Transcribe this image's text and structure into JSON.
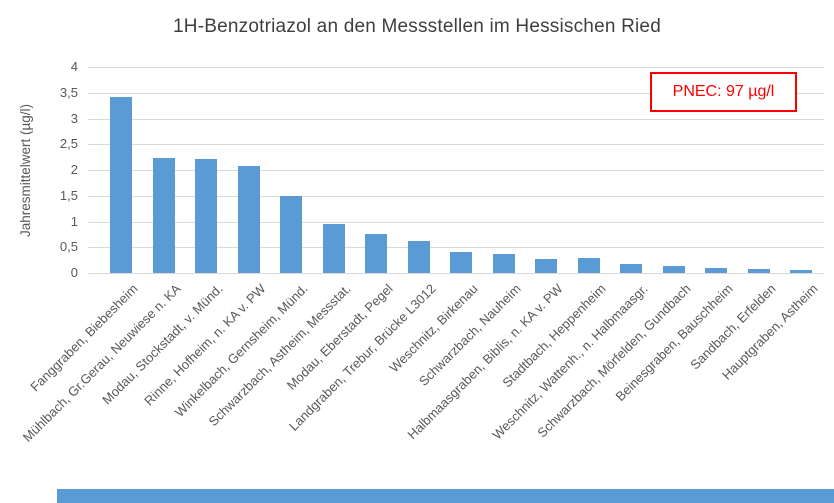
{
  "chart_data": {
    "type": "bar",
    "title": "1H-Benzotriazol an den Messstellen im Hessischen Ried",
    "ylabel": "Jahresmittelwert (µg/l)",
    "xlabel": "",
    "ylim": [
      0,
      4
    ],
    "ytick_step": 0.5,
    "ytick_labels": [
      "0",
      "0,5",
      "1",
      "1,5",
      "2",
      "2,5",
      "3",
      "3,5",
      "4"
    ],
    "grid": true,
    "legend": false,
    "categories": [
      "Fanggraben, Biebesheim",
      "Mühlbach, Gr.Gerau, Neuwiese n. KA",
      "Modau, Stockstadt, v. Münd.",
      "Rinne, Hofheim, n. KA v. PW",
      "Winkelbach, Gernsheim, Münd.",
      "Schwarzbach, Astheim, Messstat.",
      "Modau, Eberstadt, Pegel",
      "Landgraben, Trebur, Brücke L3012",
      "Weschnitz, Birkenau",
      "Schwarzbach, Nauheim",
      "Halbmaasgraben, Biblis, n. KA v. PW",
      "Stadtbach, Heppenheim",
      "Weschnitz, Wattenh., n. Halbmaasgr.",
      "Schwarzbach, Mörfelden, Gundbach",
      "Beinesgraben, Bauschheim",
      "Sandbach, Erfelden",
      "Hauptgraben, Astheim"
    ],
    "values": [
      3.42,
      2.24,
      2.22,
      2.07,
      1.49,
      0.95,
      0.75,
      0.62,
      0.41,
      0.37,
      0.28,
      0.3,
      0.17,
      0.14,
      0.1,
      0.08,
      0.05
    ],
    "annotations": [
      {
        "text": "PNEC: 97 µg/l",
        "color": "#FF0000",
        "position": "top-right"
      }
    ]
  },
  "colors": {
    "bar": "#5B9BD5",
    "gridline": "#D9D9D9",
    "axis_text": "#595959",
    "title_text": "#3F3F3F",
    "annotation": "#FF0000",
    "bottom_strip": "#5B9BD5"
  }
}
